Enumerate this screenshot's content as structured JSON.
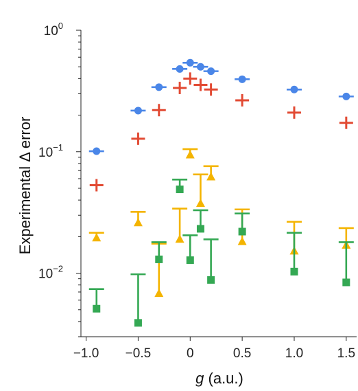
{
  "chart_data": {
    "type": "scatter",
    "xlabel": "g (a.u.)",
    "ylabel": "Experimental Δ error",
    "xlim": [
      -1.05,
      1.6
    ],
    "ylim": [
      0.003,
      1.0
    ],
    "yscale": "log",
    "x_ticks": [
      -1.0,
      -0.5,
      0,
      0.5,
      1.0,
      1.5
    ],
    "x_tick_labels": [
      "−1.0",
      "−0.5",
      "0",
      "0.5",
      "1.0",
      "1.5"
    ],
    "y_ticks": [
      {
        "value": 1,
        "base": "10",
        "exp": "0"
      },
      {
        "value": 0.1,
        "base": "10",
        "exp": "−1"
      },
      {
        "value": 0.01,
        "base": "10",
        "exp": "−2"
      }
    ],
    "grid": false,
    "series": [
      {
        "marker": "circle",
        "color": "#4a86e8",
        "points": [
          {
            "x": -0.9,
            "y": 0.101
          },
          {
            "x": -0.5,
            "y": 0.218
          },
          {
            "x": -0.3,
            "y": 0.34
          },
          {
            "x": -0.1,
            "y": 0.48
          },
          {
            "x": 0.0,
            "y": 0.54
          },
          {
            "x": 0.1,
            "y": 0.5
          },
          {
            "x": 0.2,
            "y": 0.46
          },
          {
            "x": 0.5,
            "y": 0.395
          },
          {
            "x": 1.0,
            "y": 0.325
          },
          {
            "x": 1.5,
            "y": 0.285
          }
        ]
      },
      {
        "marker": "plus",
        "color": "#e24a33",
        "points": [
          {
            "x": -0.9,
            "y": 0.053
          },
          {
            "x": -0.5,
            "y": 0.128
          },
          {
            "x": -0.3,
            "y": 0.22
          },
          {
            "x": -0.1,
            "y": 0.335
          },
          {
            "x": 0.0,
            "y": 0.4
          },
          {
            "x": 0.1,
            "y": 0.355
          },
          {
            "x": 0.2,
            "y": 0.325
          },
          {
            "x": 0.5,
            "y": 0.265
          },
          {
            "x": 1.0,
            "y": 0.21
          },
          {
            "x": 1.5,
            "y": 0.173
          }
        ]
      },
      {
        "marker": "triangle",
        "color": "#f4b400",
        "points": [
          {
            "x": -0.9,
            "y": 0.0195,
            "err": 0.0215
          },
          {
            "x": -0.5,
            "y": 0.026,
            "err": 0.032
          },
          {
            "x": -0.3,
            "y": 0.0068,
            "err": 0.0175
          },
          {
            "x": -0.1,
            "y": 0.019,
            "err": 0.034
          },
          {
            "x": 0.0,
            "y": 0.094,
            "err": 0.105
          },
          {
            "x": 0.1,
            "y": 0.0375,
            "err": 0.065
          },
          {
            "x": 0.2,
            "y": 0.062,
            "err": 0.076
          },
          {
            "x": 0.5,
            "y": 0.0182,
            "err": 0.0335
          },
          {
            "x": 1.0,
            "y": 0.0152,
            "err": 0.0265
          },
          {
            "x": 1.5,
            "y": 0.017,
            "err": 0.0235
          }
        ]
      },
      {
        "marker": "square",
        "color": "#34a853",
        "points": [
          {
            "x": -0.9,
            "y": 0.0051,
            "err": 0.0074
          },
          {
            "x": -0.5,
            "y": 0.0039,
            "err": 0.0098
          },
          {
            "x": -0.3,
            "y": 0.013,
            "err": 0.018
          },
          {
            "x": -0.1,
            "y": 0.049,
            "err": 0.059
          },
          {
            "x": 0.0,
            "y": 0.0128,
            "err": 0.0205
          },
          {
            "x": 0.1,
            "y": 0.0232,
            "err": 0.033
          },
          {
            "x": 0.2,
            "y": 0.0088,
            "err": 0.019
          },
          {
            "x": 0.5,
            "y": 0.022,
            "err": 0.031
          },
          {
            "x": 1.0,
            "y": 0.0103,
            "err": 0.0215
          },
          {
            "x": 1.5,
            "y": 0.0084,
            "err": 0.018
          }
        ]
      }
    ]
  }
}
